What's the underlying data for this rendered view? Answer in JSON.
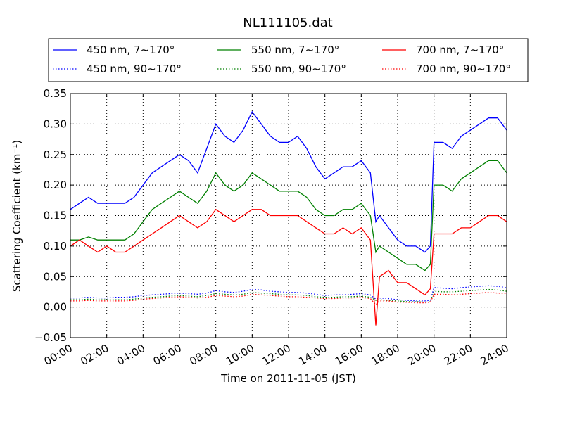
{
  "chart_data": {
    "type": "line",
    "title": "NL111105.dat",
    "xlabel": "Time on 2011-11-05 (JST)",
    "ylabel": "Scattering Coefficient (km⁻¹)",
    "xlim": [
      "00:00",
      "24:00"
    ],
    "ylim": [
      -0.05,
      0.35
    ],
    "xticks": [
      "00:00",
      "02:00",
      "04:00",
      "06:00",
      "08:00",
      "10:00",
      "12:00",
      "14:00",
      "16:00",
      "18:00",
      "20:00",
      "22:00",
      "24:00"
    ],
    "yticks": [
      "−0.05",
      "0.00",
      "0.05",
      "0.10",
      "0.15",
      "0.20",
      "0.25",
      "0.30",
      "0.35"
    ],
    "grid": true,
    "legend_position": "top, above plot",
    "x_hours": [
      0,
      0.5,
      1,
      1.5,
      2,
      2.5,
      3,
      3.5,
      4,
      4.5,
      5,
      5.5,
      6,
      6.5,
      7,
      7.5,
      8,
      8.5,
      9,
      9.5,
      10,
      10.5,
      11,
      11.5,
      12,
      12.5,
      13,
      13.5,
      14,
      14.5,
      15,
      15.5,
      16,
      16.5,
      16.8,
      17,
      17.5,
      18,
      18.5,
      19,
      19.5,
      19.8,
      20,
      20.5,
      21,
      21.5,
      22,
      22.5,
      23,
      23.5,
      24
    ],
    "series": [
      {
        "name": "450 nm, 7∼170°",
        "color": "#0000ff",
        "style": "solid",
        "values": [
          0.16,
          0.17,
          0.18,
          0.17,
          0.17,
          0.17,
          0.17,
          0.18,
          0.2,
          0.22,
          0.23,
          0.24,
          0.25,
          0.24,
          0.22,
          0.26,
          0.3,
          0.28,
          0.27,
          0.29,
          0.32,
          0.3,
          0.28,
          0.27,
          0.27,
          0.28,
          0.26,
          0.23,
          0.21,
          0.22,
          0.23,
          0.23,
          0.24,
          0.22,
          0.14,
          0.15,
          0.13,
          0.11,
          0.1,
          0.1,
          0.09,
          0.1,
          0.27,
          0.27,
          0.26,
          0.28,
          0.29,
          0.3,
          0.31,
          0.31,
          0.29
        ]
      },
      {
        "name": "550 nm, 7∼170°",
        "color": "#008000",
        "style": "solid",
        "values": [
          0.11,
          0.11,
          0.115,
          0.11,
          0.11,
          0.11,
          0.11,
          0.12,
          0.14,
          0.16,
          0.17,
          0.18,
          0.19,
          0.18,
          0.17,
          0.19,
          0.22,
          0.2,
          0.19,
          0.2,
          0.22,
          0.21,
          0.2,
          0.19,
          0.19,
          0.19,
          0.18,
          0.16,
          0.15,
          0.15,
          0.16,
          0.16,
          0.17,
          0.15,
          0.09,
          0.1,
          0.09,
          0.08,
          0.07,
          0.07,
          0.06,
          0.07,
          0.2,
          0.2,
          0.19,
          0.21,
          0.22,
          0.23,
          0.24,
          0.24,
          0.22
        ]
      },
      {
        "name": "700 nm, 7∼170°",
        "color": "#ff0000",
        "style": "solid",
        "values": [
          0.1,
          0.11,
          0.1,
          0.09,
          0.1,
          0.09,
          0.09,
          0.1,
          0.11,
          0.12,
          0.13,
          0.14,
          0.15,
          0.14,
          0.13,
          0.14,
          0.16,
          0.15,
          0.14,
          0.15,
          0.16,
          0.16,
          0.15,
          0.15,
          0.15,
          0.15,
          0.14,
          0.13,
          0.12,
          0.12,
          0.13,
          0.12,
          0.13,
          0.11,
          -0.03,
          0.05,
          0.06,
          0.04,
          0.04,
          0.03,
          0.02,
          0.03,
          0.12,
          0.12,
          0.12,
          0.13,
          0.13,
          0.14,
          0.15,
          0.15,
          0.14
        ]
      },
      {
        "name": "450 nm, 90∼170°",
        "color": "#0000ff",
        "style": "dotted",
        "values": [
          0.015,
          0.015,
          0.016,
          0.015,
          0.015,
          0.016,
          0.016,
          0.017,
          0.019,
          0.02,
          0.021,
          0.022,
          0.023,
          0.022,
          0.021,
          0.023,
          0.027,
          0.025,
          0.024,
          0.026,
          0.029,
          0.028,
          0.026,
          0.025,
          0.024,
          0.024,
          0.023,
          0.021,
          0.019,
          0.02,
          0.02,
          0.021,
          0.022,
          0.02,
          0.013,
          0.015,
          0.014,
          0.012,
          0.011,
          0.01,
          0.01,
          0.011,
          0.032,
          0.031,
          0.03,
          0.032,
          0.033,
          0.034,
          0.035,
          0.034,
          0.032
        ]
      },
      {
        "name": "550 nm, 90∼170°",
        "color": "#008000",
        "style": "dotted",
        "values": [
          0.012,
          0.012,
          0.013,
          0.012,
          0.012,
          0.012,
          0.012,
          0.013,
          0.015,
          0.016,
          0.017,
          0.018,
          0.019,
          0.018,
          0.017,
          0.019,
          0.022,
          0.021,
          0.02,
          0.021,
          0.024,
          0.023,
          0.022,
          0.021,
          0.02,
          0.02,
          0.019,
          0.017,
          0.016,
          0.016,
          0.017,
          0.017,
          0.018,
          0.016,
          0.011,
          0.012,
          0.011,
          0.01,
          0.009,
          0.009,
          0.008,
          0.009,
          0.026,
          0.025,
          0.025,
          0.026,
          0.027,
          0.028,
          0.029,
          0.028,
          0.026
        ]
      },
      {
        "name": "700 nm, 90∼170°",
        "color": "#ff0000",
        "style": "dotted",
        "values": [
          0.01,
          0.01,
          0.011,
          0.01,
          0.01,
          0.01,
          0.01,
          0.011,
          0.013,
          0.014,
          0.015,
          0.016,
          0.017,
          0.016,
          0.015,
          0.016,
          0.019,
          0.018,
          0.017,
          0.018,
          0.021,
          0.02,
          0.019,
          0.018,
          0.017,
          0.017,
          0.016,
          0.015,
          0.014,
          0.014,
          0.015,
          0.015,
          0.016,
          0.014,
          0.004,
          0.01,
          0.01,
          0.008,
          0.008,
          0.007,
          0.007,
          0.008,
          0.021,
          0.021,
          0.02,
          0.021,
          0.022,
          0.023,
          0.024,
          0.023,
          0.022
        ]
      }
    ]
  }
}
